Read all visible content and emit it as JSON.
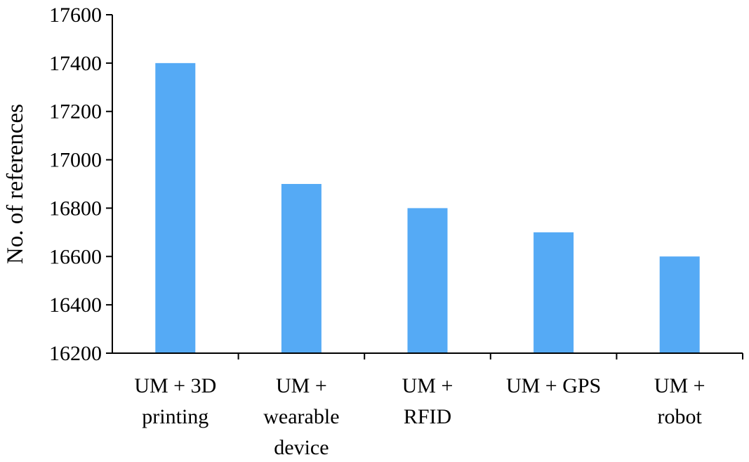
{
  "chart_data": {
    "type": "bar",
    "categories": [
      [
        "UM + 3D",
        "printing"
      ],
      [
        "UM +",
        "wearable",
        "device"
      ],
      [
        "UM +",
        "RFID"
      ],
      [
        "UM + GPS"
      ],
      [
        "UM +",
        "robot"
      ]
    ],
    "values": [
      17400,
      16900,
      16800,
      16700,
      16600
    ],
    "ylabel": "No. of references",
    "ylim": [
      16200,
      17600
    ],
    "yticks": [
      16200,
      16400,
      16600,
      16800,
      17000,
      17200,
      17400,
      17600
    ],
    "bar_color": "#55AAF5",
    "grid": false,
    "legend": "none"
  }
}
